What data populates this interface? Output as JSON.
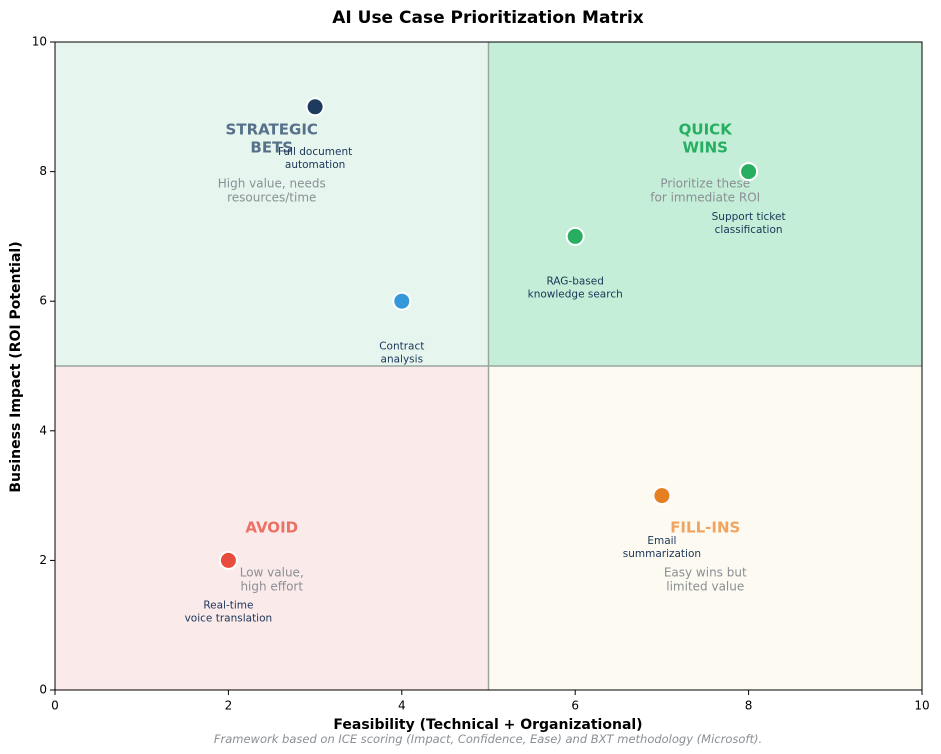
{
  "chart_data": {
    "type": "scatter",
    "title": "AI Use Case Prioritization Matrix",
    "xlabel": "Feasibility (Technical + Organizational)",
    "ylabel": "Business Impact (ROI Potential)",
    "xlim": [
      0,
      10
    ],
    "ylim": [
      0,
      10
    ],
    "xticks": [
      "0",
      "2",
      "4",
      "6",
      "8",
      "10"
    ],
    "yticks": [
      "0",
      "2",
      "4",
      "6",
      "8",
      "10"
    ],
    "grid": false,
    "quadrants": [
      {
        "key": "strategic",
        "title_lines": [
          "STRATEGIC",
          "BETS"
        ],
        "desc_lines": [
          "High value, needs",
          "resources/time"
        ],
        "fill": "#e6f6ee",
        "title_color": "#56708a",
        "lx": 2.5,
        "ly": 8.5,
        "dx": 2.5,
        "dy": 7.7
      },
      {
        "key": "quickwins",
        "title_lines": [
          "QUICK",
          "WINS"
        ],
        "desc_lines": [
          "Prioritize these",
          "for immediate ROI"
        ],
        "fill": "#c4eed8",
        "title_color": "#27ae60",
        "lx": 7.5,
        "ly": 8.5,
        "dx": 7.5,
        "dy": 7.7
      },
      {
        "key": "avoid",
        "title_lines": [
          "AVOID"
        ],
        "desc_lines": [
          "Low value,",
          "high effort"
        ],
        "fill": "#fbeaea",
        "title_color": "#ec7063",
        "lx": 2.5,
        "ly": 2.5,
        "dx": 2.5,
        "dy": 1.7
      },
      {
        "key": "fillins",
        "title_lines": [
          "FILL-INS"
        ],
        "desc_lines": [
          "Easy wins but",
          "limited value"
        ],
        "fill": "#fdfaf2",
        "title_color": "#f0a460",
        "lx": 7.5,
        "ly": 2.5,
        "dx": 7.5,
        "dy": 1.7
      }
    ],
    "points": [
      {
        "x": 3,
        "y": 9,
        "label_lines": [
          "Full document",
          "automation"
        ],
        "color": "#1f3a5f",
        "tx": 3,
        "ty": 8.2
      },
      {
        "x": 4,
        "y": 6,
        "label_lines": [
          "Contract",
          "analysis"
        ],
        "color": "#3498db",
        "tx": 4,
        "ty": 5.2
      },
      {
        "x": 6,
        "y": 7,
        "label_lines": [
          "RAG-based",
          "knowledge search"
        ],
        "color": "#27ae60",
        "tx": 6,
        "ty": 6.2
      },
      {
        "x": 8,
        "y": 8,
        "label_lines": [
          "Support ticket",
          "classification"
        ],
        "color": "#27ae60",
        "tx": 8,
        "ty": 7.2
      },
      {
        "x": 7,
        "y": 3,
        "label_lines": [
          "Email",
          "summarization"
        ],
        "color": "#e67e22",
        "tx": 7,
        "ty": 2.2
      },
      {
        "x": 2,
        "y": 2,
        "label_lines": [
          "Real-time",
          "voice translation"
        ],
        "color": "#e74c3c",
        "tx": 2,
        "ty": 1.2
      }
    ],
    "footnote": "Framework based on ICE scoring (Impact, Confidence, Ease) and BXT methodology (Microsoft)."
  }
}
